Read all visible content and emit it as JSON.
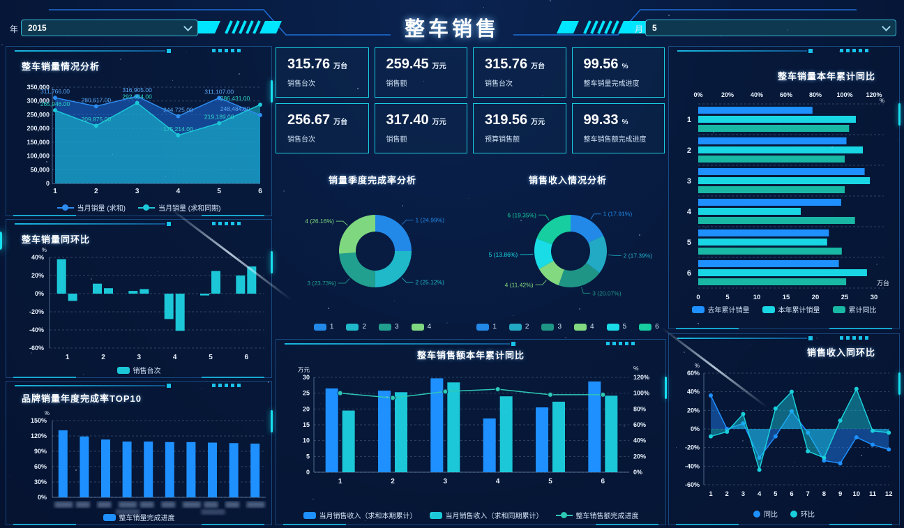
{
  "header": {
    "title": "整车销售",
    "year_label": "年",
    "year_value": "2015",
    "month_label": "月",
    "month_value": "5"
  },
  "colors": {
    "accent": "#00e5ff",
    "blue": "#1e90ff",
    "cyan": "#1cc8d8",
    "bright_cyan": "#19d6e4",
    "teal": "#1fb3a2",
    "green": "#7ed87f",
    "axis_text": "#e9f2fd",
    "panel_border": "#2673b9"
  },
  "kpis": [
    {
      "value": "315.76",
      "unit": "万台",
      "label": "销售台次"
    },
    {
      "value": "259.45",
      "unit": "万元",
      "label": "销售额"
    },
    {
      "value": "315.76",
      "unit": "万台",
      "label": "销售台次"
    },
    {
      "value": "99.56",
      "unit": "%",
      "label": "整车销量完成进度"
    },
    {
      "value": "256.67",
      "unit": "万台",
      "label": "销售台次"
    },
    {
      "value": "317.40",
      "unit": "万元",
      "label": "销售额"
    },
    {
      "value": "319.56",
      "unit": "万元",
      "label": "预算销售额"
    },
    {
      "value": "99.33",
      "unit": "%",
      "label": "整车销售额完成进度"
    }
  ],
  "chart_data": [
    {
      "type": "area",
      "title": "整车销量情况分析",
      "x": [
        1,
        2,
        3,
        4,
        5,
        6
      ],
      "ylim": [
        0,
        350000
      ],
      "ystep": 50000,
      "grid": true,
      "legend_position": "bottom",
      "series": [
        {
          "name": "当月销量 (求和)",
          "color": "#2d8cf0",
          "values": [
            311766,
            280617,
            316905,
            244725,
            311107,
            248484
          ]
        },
        {
          "name": "当月销量 (求和同期)",
          "color": "#1cc8d8",
          "values": [
            265946,
            209875,
            292634,
            175214,
            219189,
            286431
          ]
        }
      ],
      "legend": [
        {
          "label": "当月销量 (求和)",
          "color": "#2d8cf0",
          "type": "linedot"
        },
        {
          "label": "当月销量 (求和同期)",
          "color": "#1cc8d8",
          "type": "linedot"
        }
      ]
    },
    {
      "type": "pairbar",
      "title": "整车销量同环比",
      "categories": [
        1,
        2,
        3,
        4,
        5,
        6
      ],
      "ylabel": "%",
      "ylim": [
        -60,
        40
      ],
      "ystep": 20,
      "grid": true,
      "series": [
        {
          "name": "销售台次A",
          "color": "#1cc8d8",
          "values": [
            38,
            11,
            3,
            -28,
            -2,
            20
          ]
        },
        {
          "name": "销售台次B",
          "color": "#1cc8d8",
          "values": [
            -8,
            6,
            5,
            -41,
            25,
            30
          ]
        }
      ],
      "legend": [
        {
          "label": "销售台次",
          "color": "#1cc8d8",
          "type": "rect"
        }
      ]
    },
    {
      "type": "bar",
      "title": "品牌销量年度完成率TOP10",
      "ylabel": "%",
      "ylim": [
        0,
        150
      ],
      "ystep": 30,
      "grid": true,
      "xlabels_redacted": true,
      "values": [
        131,
        119,
        113,
        109,
        109,
        108,
        108,
        107,
        106,
        105
      ],
      "color": "#1e90ff",
      "legend": [
        {
          "label": "整车销量完成进度",
          "color": "#1e90ff",
          "type": "rect"
        }
      ]
    },
    {
      "type": "donut",
      "title": "销量季度完成率分析",
      "slices": [
        {
          "name": "1",
          "label": "1 (24.99%)",
          "value": 24.99,
          "color": "#2289e8"
        },
        {
          "name": "2",
          "label": "2 (25.12%)",
          "value": 25.12,
          "color": "#1fb9c9"
        },
        {
          "name": "3",
          "label": "3 (23.73%)",
          "value": 23.73,
          "color": "#21a08f"
        },
        {
          "name": "4",
          "label": "4 (26.16%)",
          "value": 26.16,
          "color": "#7fd87f"
        }
      ],
      "legend": [
        {
          "label": "1",
          "color": "#2289e8",
          "type": "rect"
        },
        {
          "label": "2",
          "color": "#1fb9c9",
          "type": "rect"
        },
        {
          "label": "3",
          "color": "#21a08f",
          "type": "rect"
        },
        {
          "label": "4",
          "color": "#7fd87f",
          "type": "rect"
        }
      ]
    },
    {
      "type": "donut",
      "title": "销售收入情况分析",
      "slices": [
        {
          "name": "1",
          "label": "1 (17.91%)",
          "value": 17.91,
          "color": "#2289e8"
        },
        {
          "name": "2",
          "label": "2 (17.39%)",
          "value": 17.39,
          "color": "#22a9c4"
        },
        {
          "name": "3",
          "label": "3 (20.07%)",
          "value": 20.07,
          "color": "#1f9585"
        },
        {
          "name": "4",
          "label": "4 (11.42%)",
          "value": 11.42,
          "color": "#82d97f"
        },
        {
          "name": "5",
          "label": "5 (13.86%)",
          "value": 13.86,
          "color": "#1adce6"
        },
        {
          "name": "6",
          "label": "6 (19.35%)",
          "value": 19.35,
          "color": "#16ce9f"
        }
      ],
      "legend": [
        {
          "label": "1",
          "color": "#2289e8",
          "type": "rect"
        },
        {
          "label": "2",
          "color": "#22a9c4",
          "type": "rect"
        },
        {
          "label": "3",
          "color": "#1f9585",
          "type": "rect"
        },
        {
          "label": "4",
          "color": "#82d97f",
          "type": "rect"
        },
        {
          "label": "5",
          "color": "#1adce6",
          "type": "rect"
        },
        {
          "label": "6",
          "color": "#16ce9f",
          "type": "rect"
        }
      ]
    },
    {
      "type": "combo",
      "title": "整车销售额本年累计同比",
      "categories": [
        1,
        2,
        3,
        4,
        5,
        6
      ],
      "left_axis": {
        "label": "万元",
        "ylim": [
          0,
          30
        ],
        "ystep": 5
      },
      "right_axis": {
        "label": "%",
        "ylim": [
          0,
          120
        ],
        "ystep": 20
      },
      "grid": true,
      "bars": [
        {
          "name": "当月销售收入（求和本期累计）",
          "color": "#1e90ff",
          "values": [
            26.5,
            25.8,
            29.7,
            17.0,
            20.5,
            28.7
          ]
        },
        {
          "name": "当月销售收入（求和同期累计）",
          "color": "#1cc8d8",
          "values": [
            19.5,
            25.3,
            28.4,
            24.0,
            22.3,
            24.2
          ]
        }
      ],
      "line": {
        "name": "整车销售额完成进度",
        "color": "#2ec8b4",
        "values": [
          100,
          94,
          102,
          105,
          98,
          98
        ]
      },
      "legend": [
        {
          "label": "当月销售收入（求和本期累计）",
          "color": "#1e90ff",
          "type": "rect"
        },
        {
          "label": "当月销售收入（求和同期累计）",
          "color": "#1cc8d8",
          "type": "rect"
        },
        {
          "label": "整车销售额完成进度",
          "color": "#2ec8b4",
          "type": "linedot"
        }
      ]
    },
    {
      "type": "hbar",
      "title": "整车销量本年累计同比",
      "groups": [
        1,
        2,
        3,
        4,
        5,
        6
      ],
      "top_axis": {
        "label": "%",
        "xlim": [
          0,
          120
        ],
        "xstep": 20
      },
      "bottom_axis": {
        "label": "万台",
        "xlim": [
          0,
          30
        ],
        "xstep": 5
      },
      "series": [
        {
          "name": "去年累计销量",
          "color": "#1e90ff",
          "unit": "万台",
          "values": [
            19.5,
            25.3,
            28.4,
            24.4,
            22.3,
            24.0
          ]
        },
        {
          "name": "本年累计销量",
          "color": "#19d6e4",
          "unit": "万台",
          "values": [
            26.9,
            28.1,
            29.3,
            17.5,
            22.0,
            28.8
          ]
        },
        {
          "name": "累计同比",
          "color": "#18b8a4",
          "unit": "%",
          "values": [
            103,
            100,
            100,
            107,
            98,
            101
          ]
        }
      ],
      "legend": [
        {
          "label": "去年累计销量",
          "color": "#1e90ff",
          "type": "rect"
        },
        {
          "label": "本年累计销量",
          "color": "#19d6e4",
          "type": "rect"
        },
        {
          "label": "累计同比",
          "color": "#18b8a4",
          "type": "rect"
        }
      ]
    },
    {
      "type": "line2",
      "title": "销售收入同环比",
      "x": [
        1,
        2,
        3,
        4,
        5,
        6,
        7,
        8,
        9,
        10,
        11,
        12
      ],
      "ylabel": "%",
      "ylim": [
        -60,
        60
      ],
      "ystep": 20,
      "grid": true,
      "series": [
        {
          "name": "同比",
          "color": "#1e90ff",
          "values": [
            36,
            0,
            6,
            -31,
            -8,
            19,
            -4,
            -34,
            -37,
            -9,
            -17,
            -22
          ]
        },
        {
          "name": "环比",
          "color": "#19cfdc",
          "values": [
            -8,
            -3,
            16,
            -44,
            22,
            40,
            -24,
            -31,
            9,
            43,
            -2,
            -4
          ]
        }
      ],
      "legend": [
        {
          "label": "同比",
          "color": "#1e90ff",
          "type": "dot"
        },
        {
          "label": "环比",
          "color": "#19cfdc",
          "type": "dot"
        }
      ]
    }
  ]
}
